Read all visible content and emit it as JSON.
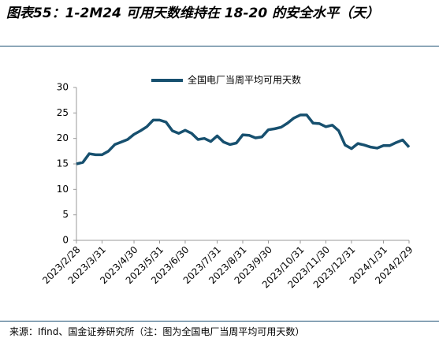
{
  "chart_data": {
    "type": "line",
    "title": "图表55：1-2M24 可用天数维持在 18-20 的安全水平（天）",
    "source": "来源：Ifind、国金证券研究所（注：图为全国电厂当周平均可用天数）",
    "categories": [
      "2023/2/28",
      null,
      null,
      null,
      "2023/3/31",
      null,
      null,
      null,
      null,
      "2023/4/30",
      null,
      null,
      null,
      "2023/5/31",
      null,
      null,
      null,
      "2023/6/30",
      null,
      null,
      null,
      null,
      "2023/7/31",
      null,
      null,
      null,
      "2023/8/31",
      null,
      null,
      null,
      "2023/9/30",
      null,
      null,
      null,
      null,
      "2023/10/31",
      null,
      null,
      null,
      "2023/11/30",
      null,
      null,
      null,
      "2023/12/31",
      null,
      null,
      null,
      null,
      "2024/1/31",
      null,
      null,
      null,
      "2024/2/29"
    ],
    "series": [
      {
        "name": "全国电厂当周平均可用天数",
        "color": "#17506f",
        "values": [
          15.0,
          15.3,
          17.0,
          16.8,
          16.8,
          17.5,
          18.8,
          19.3,
          19.8,
          20.8,
          21.5,
          22.3,
          23.6,
          23.6,
          23.2,
          21.5,
          21.0,
          21.6,
          21.0,
          19.8,
          20.0,
          19.4,
          20.5,
          19.3,
          18.8,
          19.1,
          20.7,
          20.6,
          20.1,
          20.3,
          21.7,
          21.9,
          22.2,
          23.0,
          24.0,
          24.6,
          24.6,
          23.0,
          22.9,
          22.3,
          22.6,
          21.5,
          18.7,
          18.0,
          19.0,
          18.7,
          18.3,
          18.1,
          18.6,
          18.6,
          19.2,
          19.7,
          18.3
        ]
      }
    ],
    "ylim": [
      0,
      30
    ],
    "yticks": [
      0,
      5,
      10,
      15,
      20,
      25,
      30
    ],
    "grid": false
  }
}
